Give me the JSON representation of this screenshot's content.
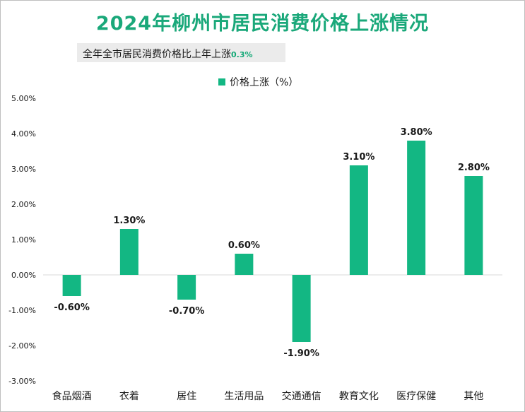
{
  "chart_data": {
    "type": "bar",
    "title": "2024年柳州市居民消费价格上涨情况",
    "subtitle": {
      "label": "全年全市居民消费价格比上年上涨",
      "value": "0.3%"
    },
    "legend": [
      "价格上涨（%）"
    ],
    "categories": [
      "食品烟酒",
      "衣着",
      "居住",
      "生活用品",
      "交通通信",
      "教育文化",
      "医疗保健",
      "其他"
    ],
    "series": [
      {
        "name": "价格上涨（%）",
        "values": [
          -0.6,
          1.3,
          -0.7,
          0.6,
          -1.9,
          3.1,
          3.8,
          2.8
        ]
      }
    ],
    "data_labels": [
      "-0.60%",
      "1.30%",
      "-0.70%",
      "0.60%",
      "-1.90%",
      "3.10%",
      "3.80%",
      "2.80%"
    ],
    "y_ticks": [
      "5.00%",
      "4.00%",
      "3.00%",
      "2.00%",
      "1.00%",
      "0.00%",
      "-1.00%",
      "-2.00%",
      "-3.00%"
    ],
    "ylim": [
      -3.0,
      5.0
    ],
    "xlabel": "",
    "ylabel": "",
    "bar_color": "#13b783",
    "title_color": "#1aa87a",
    "grid": false,
    "legend_position": "top-center"
  }
}
